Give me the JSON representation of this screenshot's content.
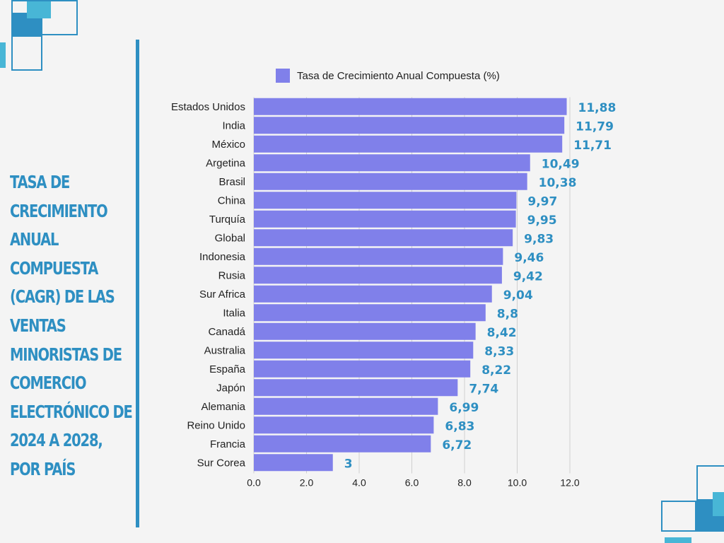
{
  "title": "TASA DE CRECIMIENTO ANUAL COMPUESTA (CAGR) DE LAS VENTAS MINORISTAS DE COMERCIO ELECTRÓNICO DE 2024 A 2028, POR PAÍS",
  "colors": {
    "accent": "#2e8fc2",
    "bar": "#8080ea",
    "accent_light": "#48b6d6"
  },
  "chart_data": {
    "type": "bar",
    "orientation": "horizontal",
    "categories": [
      "Estados Unidos",
      "India",
      "México",
      "Argetina",
      "Brasil",
      "China",
      "Turquía",
      "Global",
      "Indonesia",
      "Rusia",
      "Sur Africa",
      "Italia",
      "Canadá",
      "Australia",
      "España",
      "Japón",
      "Alemania",
      "Reino Unido",
      "Francia",
      "Sur Corea"
    ],
    "series": [
      {
        "name": "Tasa de Crecimiento Anual Compuesta (%)",
        "values": [
          11.88,
          11.79,
          11.71,
          10.49,
          10.38,
          9.97,
          9.95,
          9.83,
          9.46,
          9.42,
          9.04,
          8.8,
          8.42,
          8.33,
          8.22,
          7.74,
          6.99,
          6.83,
          6.72,
          3
        ]
      }
    ],
    "value_labels": [
      "11,88",
      "11,79",
      "11,71",
      "10,49",
      "10,38",
      "9,97",
      "9,95",
      "9,83",
      "9,46",
      "9,42",
      "9,04",
      "8,8",
      "8,42",
      "8,33",
      "8,22",
      "7,74",
      "6,99",
      "6,83",
      "6,72",
      "3"
    ],
    "xlim": [
      0,
      12
    ],
    "xticks": [
      "0.0",
      "2.0",
      "4.0",
      "6.0",
      "8.0",
      "10.0",
      "12.0"
    ],
    "grid": true,
    "legend_position": "top"
  }
}
